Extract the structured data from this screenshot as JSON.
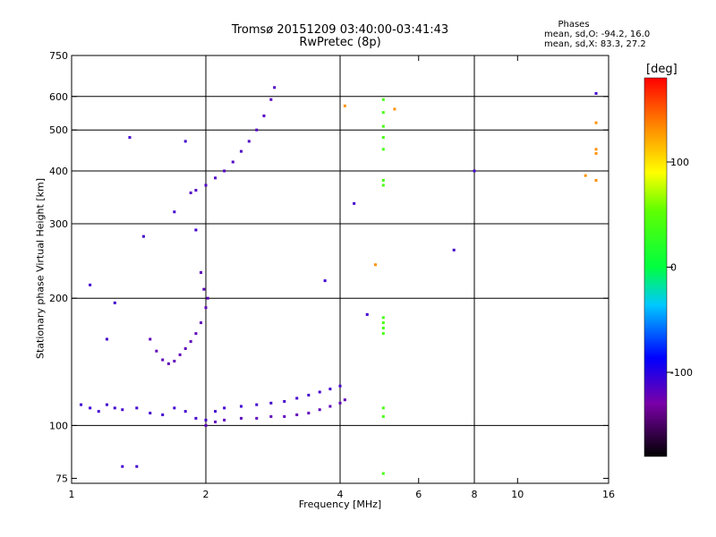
{
  "header": {
    "title_line1": "Tromsø 20151209 03:40:00-03:41:43",
    "title_line2": "RwPretec (8p)",
    "stats_heading": "Phases",
    "stats_line1": "mean, sd,O: -94.2, 16.0",
    "stats_line2": "mean, sd,X:  83.3, 27.2"
  },
  "colorbar": {
    "unit_label": "[deg]",
    "range": [
      -180,
      180
    ],
    "tick_labels": [
      "100",
      "0",
      "-100"
    ],
    "tick_values": [
      100,
      0,
      -100
    ],
    "colormap": "rainbow (black - purple - blue - cyan - green - yellow - red)"
  },
  "chart_data": {
    "type": "scatter",
    "title": "Tromsø 20151209 03:40:00-03:41:43",
    "subtitle": "RwPretec (8p)",
    "xlabel": "Frequency [MHz]",
    "ylabel": "Stationary phase Virtual Height [km]",
    "x_scale": "log",
    "y_scale": "log",
    "xlim": [
      1,
      16
    ],
    "ylim": [
      73,
      750
    ],
    "x_ticks": [
      1,
      2,
      4,
      6,
      8,
      10,
      16
    ],
    "x_tick_labels": [
      "1",
      "2",
      "4",
      "6",
      "8",
      "10",
      "16"
    ],
    "y_ticks": [
      75,
      100,
      200,
      300,
      400,
      500,
      600,
      750
    ],
    "y_tick_labels": [
      "75",
      "100",
      "200",
      "300",
      "400",
      "500",
      "600",
      "750"
    ],
    "grid": true,
    "grid_x": [
      2,
      4,
      8
    ],
    "grid_y": [
      100,
      200,
      300,
      400,
      500,
      600
    ],
    "point_color_meaning": "phase [deg]",
    "traces": [
      {
        "name": "",
        "phase_mean": -110,
        "points": [
          [
            1.05,
            112
          ],
          [
            1.1,
            110
          ],
          [
            1.15,
            108
          ],
          [
            1.2,
            112
          ],
          [
            1.25,
            110
          ],
          [
            1.3,
            109
          ],
          [
            1.4,
            110
          ],
          [
            1.5,
            107
          ],
          [
            1.6,
            106
          ],
          [
            1.7,
            110
          ],
          [
            1.8,
            108
          ],
          [
            1.9,
            104
          ],
          [
            2.0,
            103
          ],
          [
            2.1,
            108
          ],
          [
            2.2,
            110
          ],
          [
            2.4,
            111
          ],
          [
            2.6,
            112
          ],
          [
            2.8,
            113
          ],
          [
            3.0,
            114
          ],
          [
            3.2,
            116
          ],
          [
            3.4,
            118
          ],
          [
            3.6,
            120
          ],
          [
            3.8,
            122
          ],
          [
            4.0,
            124
          ]
        ]
      },
      {
        "name": "",
        "phase_mean": -120,
        "points": [
          [
            2.0,
            100
          ],
          [
            2.1,
            102
          ],
          [
            2.2,
            103
          ],
          [
            2.4,
            104
          ],
          [
            2.6,
            104
          ],
          [
            2.8,
            105
          ],
          [
            3.0,
            105
          ],
          [
            3.2,
            106
          ],
          [
            3.4,
            107
          ],
          [
            3.6,
            109
          ],
          [
            3.8,
            111
          ],
          [
            4.0,
            113
          ],
          [
            4.1,
            115
          ]
        ]
      },
      {
        "name": "",
        "phase_mean": -120,
        "points": [
          [
            1.5,
            160
          ],
          [
            1.55,
            150
          ],
          [
            1.6,
            143
          ],
          [
            1.65,
            140
          ],
          [
            1.7,
            142
          ],
          [
            1.75,
            147
          ],
          [
            1.8,
            152
          ],
          [
            1.85,
            158
          ],
          [
            1.9,
            165
          ],
          [
            1.95,
            175
          ],
          [
            2.0,
            190
          ],
          [
            2.02,
            200
          ],
          [
            1.98,
            210
          ],
          [
            1.95,
            230
          ]
        ]
      },
      {
        "name": "",
        "phase_mean": -115,
        "points": [
          [
            1.85,
            355
          ],
          [
            1.9,
            360
          ],
          [
            2.0,
            370
          ],
          [
            2.1,
            385
          ],
          [
            2.2,
            400
          ],
          [
            2.3,
            420
          ],
          [
            2.4,
            445
          ],
          [
            2.5,
            470
          ],
          [
            2.6,
            500
          ],
          [
            2.7,
            540
          ],
          [
            2.8,
            590
          ],
          [
            2.85,
            630
          ]
        ]
      },
      {
        "name": "",
        "phase_mean": 40,
        "points": [
          [
            5.0,
            590
          ],
          [
            5.0,
            550
          ],
          [
            5.0,
            510
          ],
          [
            5.0,
            480
          ],
          [
            5.0,
            450
          ],
          [
            5.0,
            380
          ],
          [
            5.0,
            370
          ],
          [
            5.0,
            180
          ],
          [
            5.0,
            175
          ],
          [
            5.0,
            170
          ],
          [
            5.0,
            165
          ],
          [
            5.0,
            110
          ],
          [
            5.0,
            105
          ],
          [
            5.0,
            77
          ]
        ]
      },
      {
        "name": "",
        "phase_mean": -110,
        "points": [
          [
            1.1,
            215
          ],
          [
            1.2,
            160
          ],
          [
            1.25,
            195
          ],
          [
            1.3,
            80
          ],
          [
            1.35,
            480
          ],
          [
            1.4,
            80
          ],
          [
            1.45,
            280
          ],
          [
            1.7,
            320
          ],
          [
            1.8,
            470
          ],
          [
            1.9,
            290
          ],
          [
            3.7,
            220
          ],
          [
            4.3,
            335
          ],
          [
            4.6,
            183
          ],
          [
            7.2,
            260
          ],
          [
            8.0,
            400
          ],
          [
            15.0,
            610
          ]
        ]
      },
      {
        "name": "",
        "phase_mean": 130,
        "points": [
          [
            15.0,
            520
          ],
          [
            15.0,
            450
          ],
          [
            15.0,
            440
          ],
          [
            15.0,
            380
          ],
          [
            14.2,
            390
          ],
          [
            4.8,
            240
          ],
          [
            4.1,
            570
          ],
          [
            5.3,
            560
          ]
        ]
      }
    ]
  }
}
